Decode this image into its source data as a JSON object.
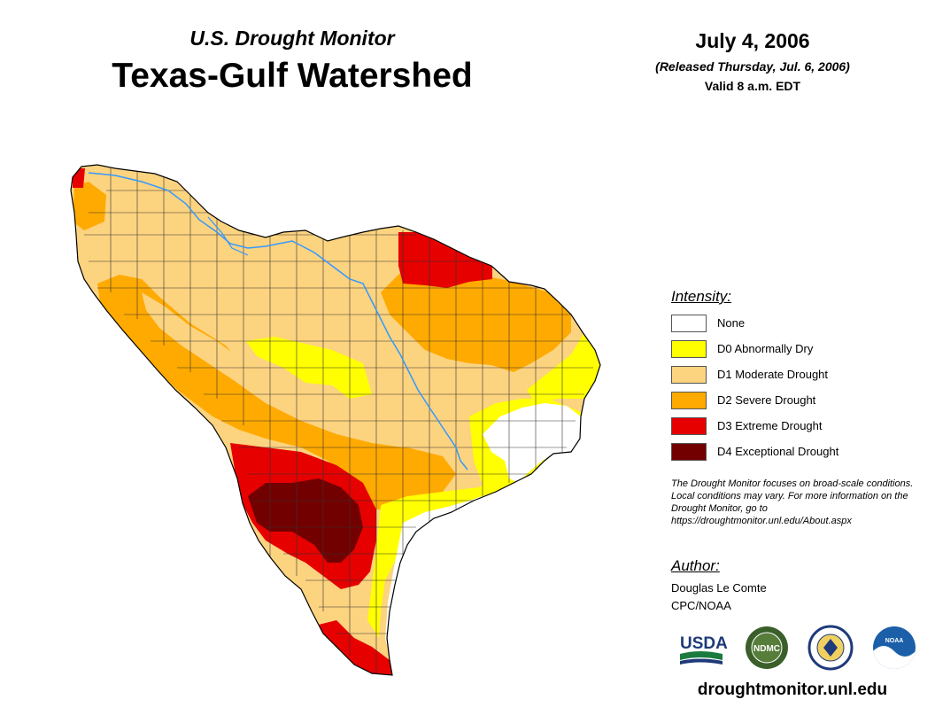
{
  "header": {
    "subtitle": "U.S. Drought Monitor",
    "title": "Texas-Gulf Watershed",
    "date": "July 4, 2006",
    "released": "(Released Thursday, Jul. 6, 2006)",
    "valid": "Valid 8 a.m. EDT"
  },
  "legend": {
    "title": "Intensity:",
    "items": [
      {
        "label": "None",
        "color": "#ffffff"
      },
      {
        "label": "D0 Abnormally Dry",
        "color": "#ffff00"
      },
      {
        "label": "D1 Moderate Drought",
        "color": "#fcd37f"
      },
      {
        "label": "D2 Severe Drought",
        "color": "#ffaa00"
      },
      {
        "label": "D3 Extreme Drought",
        "color": "#e60000"
      },
      {
        "label": "D4 Exceptional Drought",
        "color": "#730000"
      }
    ]
  },
  "note": "The Drought Monitor focuses on broad-scale conditions. Local conditions may vary. For more information on the Drought Monitor, go to https://droughtmonitor.unl.edu/About.aspx",
  "author": {
    "title": "Author:",
    "name": "Douglas Le Comte",
    "org": "CPC/NOAA"
  },
  "logos": {
    "usda": "USDA",
    "ndmc": "NDMC",
    "noaa": "NOAA"
  },
  "website": "droughtmonitor.unl.edu",
  "colors": {
    "none": "#ffffff",
    "d0": "#ffff00",
    "d1": "#fcd37f",
    "d2": "#ffaa00",
    "d3": "#e60000",
    "d4": "#730000",
    "river": "#3399ff"
  }
}
